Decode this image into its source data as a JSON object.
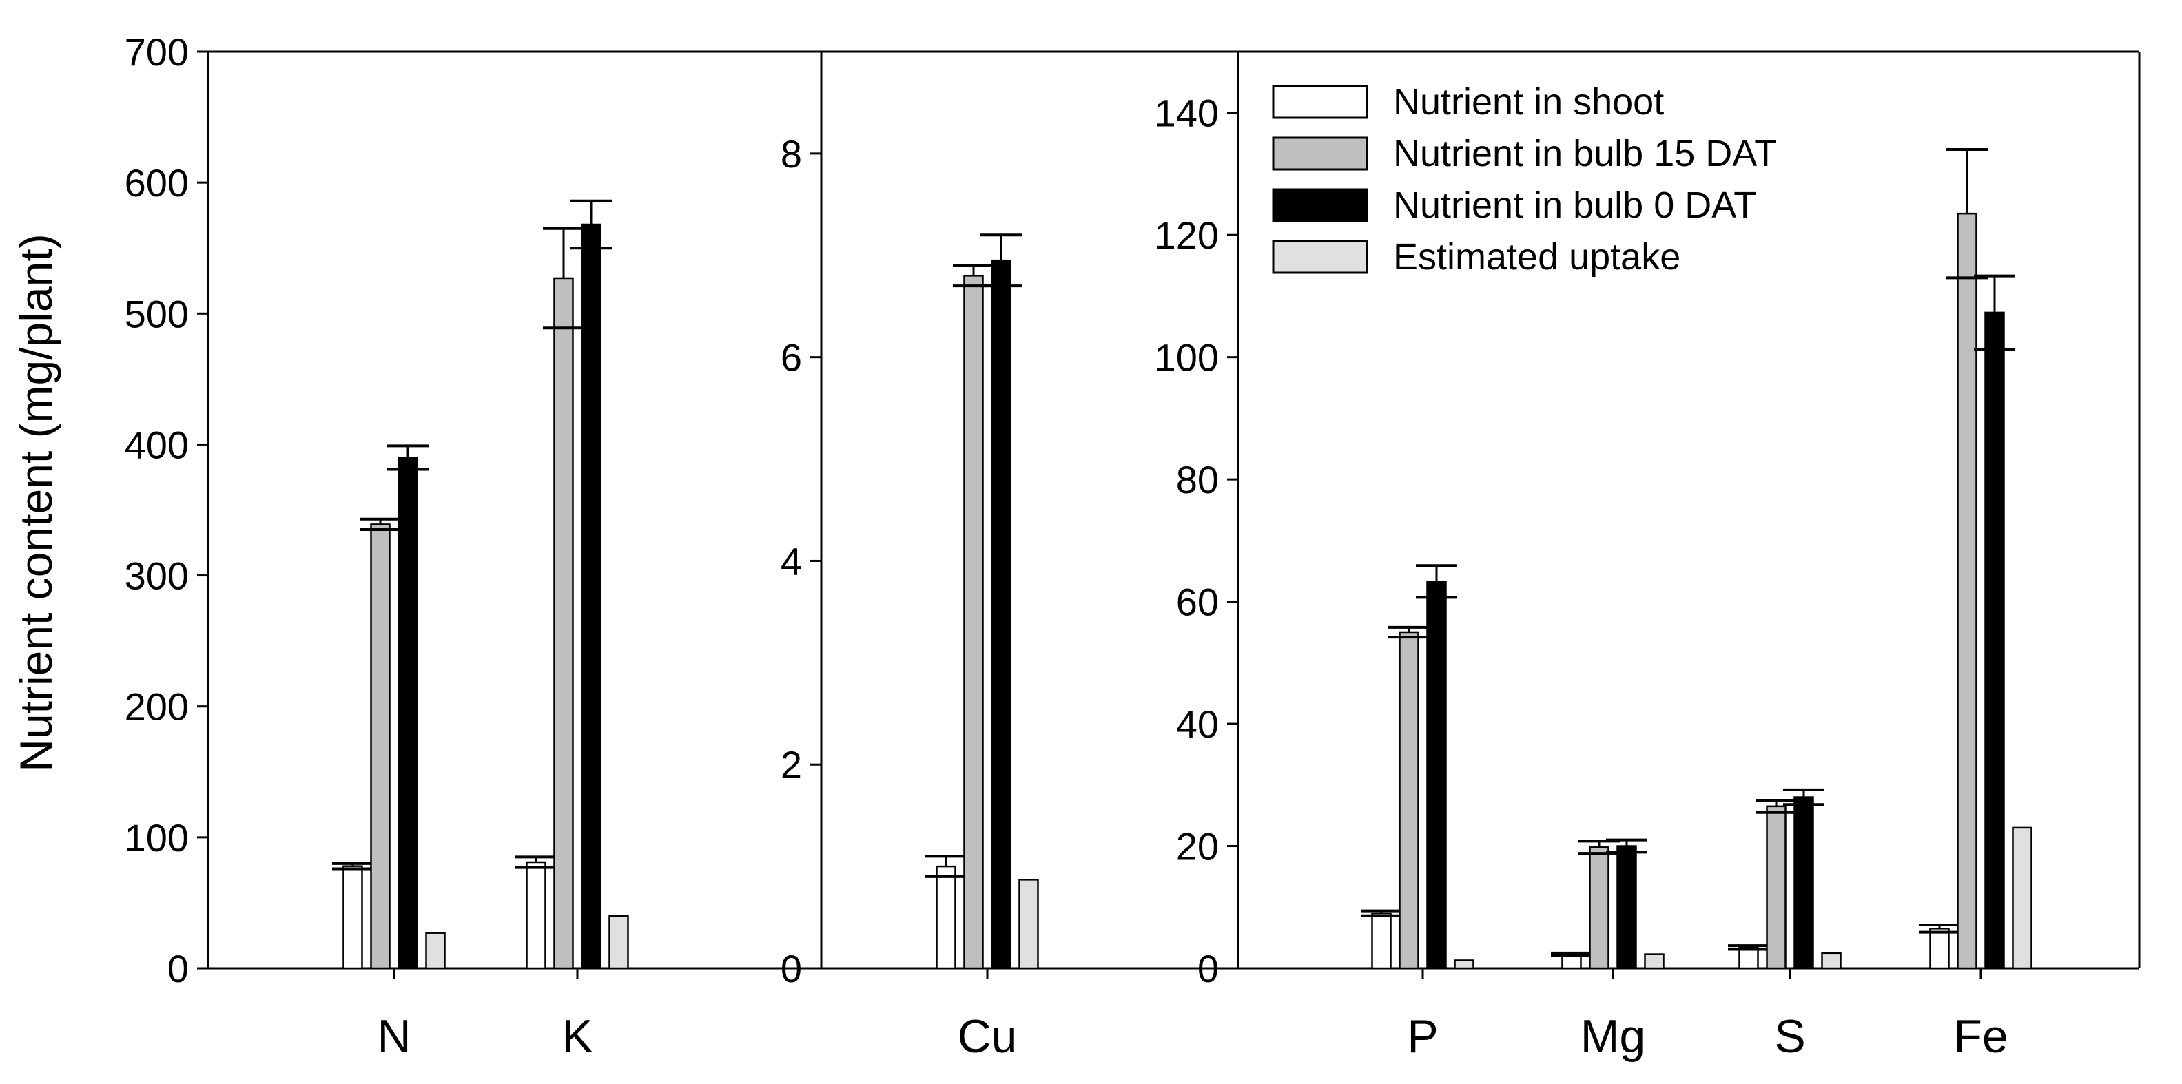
{
  "y_axis_label": "Nutrient content (mg/plant)",
  "legend": [
    {
      "label": "Nutrient in shoot",
      "color": "#ffffff"
    },
    {
      "label": "Nutrient in bulb 15 DAT",
      "color": "#bfbfbf"
    },
    {
      "label": "Nutrient in bulb 0 DAT",
      "color": "#000000"
    },
    {
      "label": "Estimated uptake",
      "color": "#e0e0e0"
    }
  ],
  "chart_data": [
    {
      "type": "bar",
      "panel": "left",
      "ylim": [
        0,
        700
      ],
      "yticks": [
        0,
        100,
        200,
        300,
        400,
        500,
        600,
        700
      ],
      "categories": [
        "N",
        "K"
      ],
      "series": [
        {
          "name": "Nutrient in shoot",
          "values": [
            78,
            81
          ],
          "errors": [
            2,
            4
          ]
        },
        {
          "name": "Nutrient in bulb 15 DAT",
          "values": [
            339,
            527
          ],
          "errors": [
            4,
            38
          ]
        },
        {
          "name": "Nutrient in bulb 0 DAT",
          "values": [
            390,
            568
          ],
          "errors": [
            9,
            18
          ]
        },
        {
          "name": "Estimated uptake",
          "values": [
            27,
            40
          ],
          "errors": [
            0,
            0
          ]
        }
      ]
    },
    {
      "type": "bar",
      "panel": "middle",
      "ylim": [
        0,
        9
      ],
      "yticks": [
        0,
        2,
        4,
        6,
        8
      ],
      "categories": [
        "Cu"
      ],
      "series": [
        {
          "name": "Nutrient in shoot",
          "values": [
            1.0
          ],
          "errors": [
            0.1
          ]
        },
        {
          "name": "Nutrient in bulb 15 DAT",
          "values": [
            6.8
          ],
          "errors": [
            0.1
          ]
        },
        {
          "name": "Nutrient in bulb 0 DAT",
          "values": [
            6.95
          ],
          "errors": [
            0.25
          ]
        },
        {
          "name": "Estimated uptake",
          "values": [
            0.87
          ],
          "errors": [
            0
          ]
        }
      ]
    },
    {
      "type": "bar",
      "panel": "right",
      "ylim": [
        0,
        150
      ],
      "yticks": [
        0,
        20,
        40,
        60,
        80,
        100,
        120,
        140
      ],
      "categories": [
        "P",
        "Mg",
        "S",
        "Fe"
      ],
      "series": [
        {
          "name": "Nutrient in shoot",
          "values": [
            9,
            2.3,
            3.4,
            6.5
          ],
          "errors": [
            0.4,
            0.2,
            0.3,
            0.6
          ]
        },
        {
          "name": "Nutrient in bulb 15 DAT",
          "values": [
            55,
            19.8,
            26.5,
            123.5
          ],
          "errors": [
            0.8,
            1.0,
            1.0,
            10.5
          ]
        },
        {
          "name": "Nutrient in bulb 0 DAT",
          "values": [
            63.3,
            20,
            28,
            107.3
          ],
          "errors": [
            2.6,
            1.0,
            1.2,
            6.0
          ]
        },
        {
          "name": "Estimated uptake",
          "values": [
            1.3,
            2.3,
            2.5,
            23
          ],
          "errors": [
            0,
            0,
            0,
            0
          ]
        }
      ]
    }
  ]
}
